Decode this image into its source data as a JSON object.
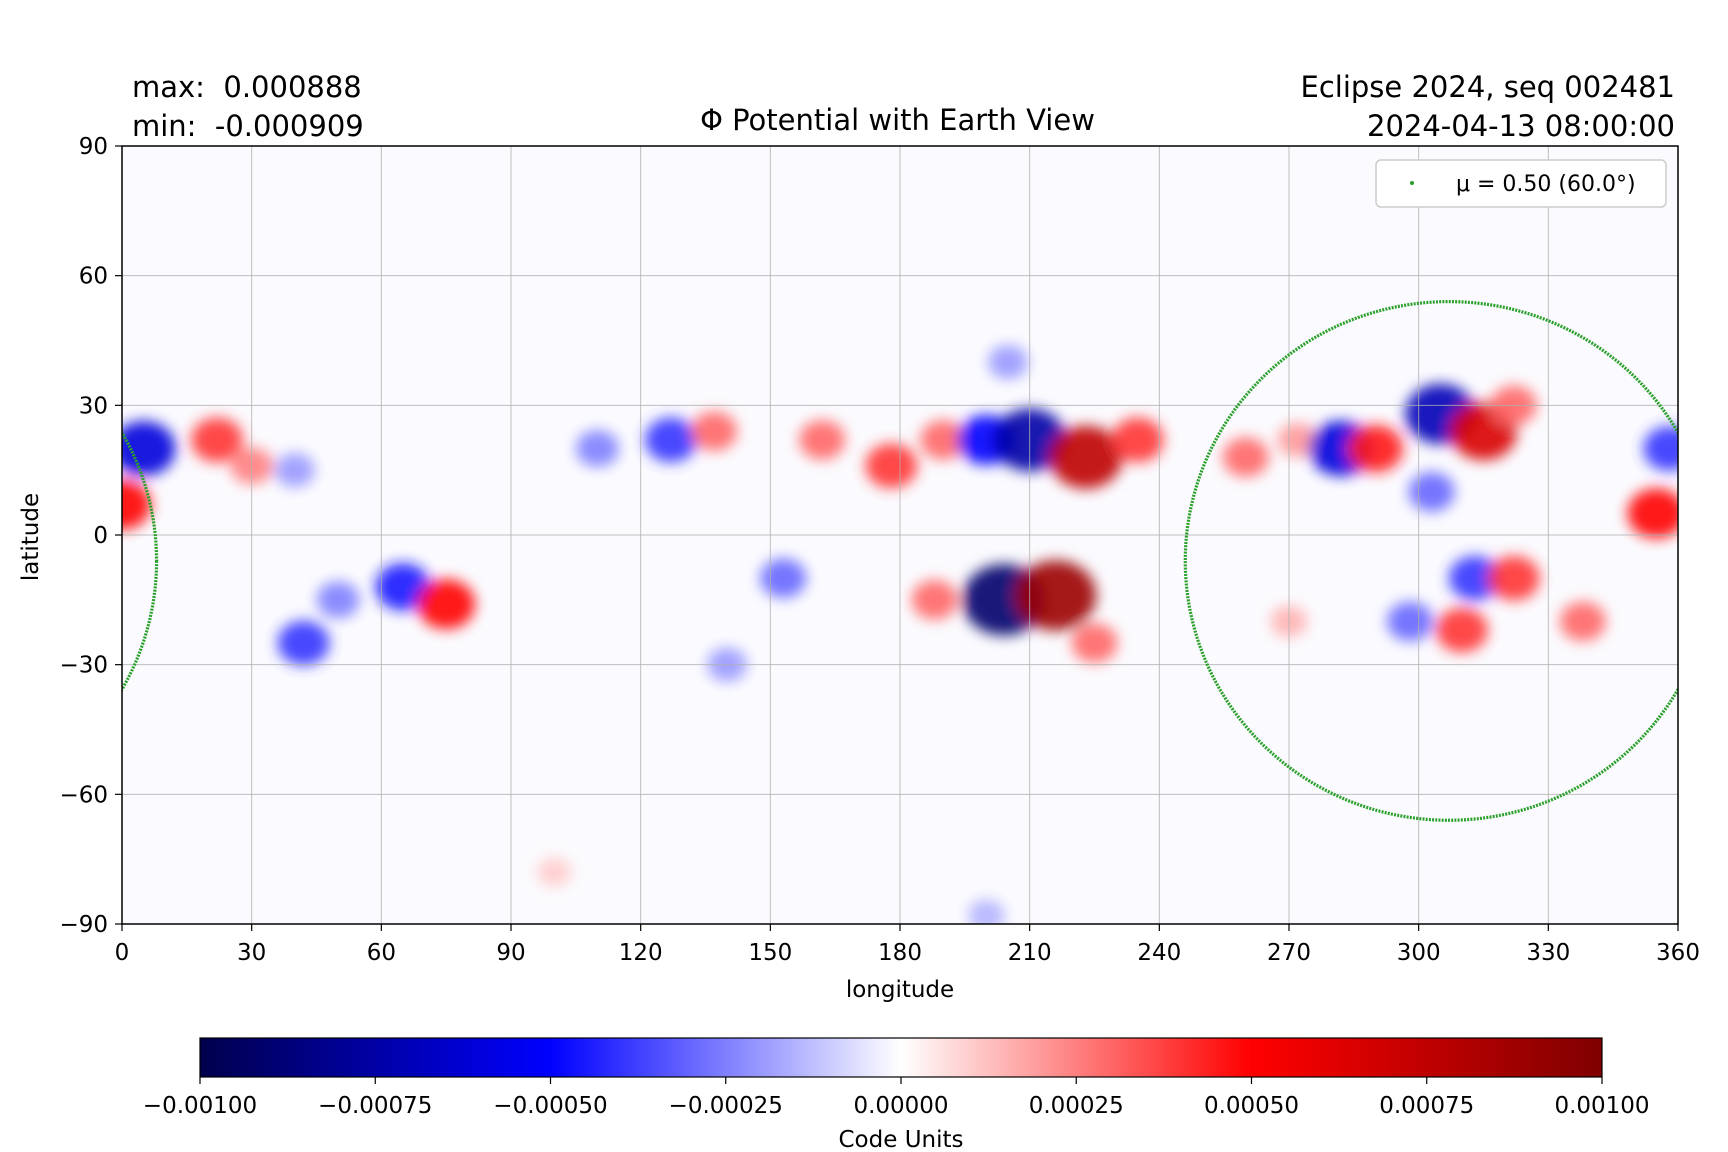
{
  "header": {
    "max_line": "max:  0.000888",
    "min_line": "min:  -0.000909",
    "run_line": "Eclipse 2024, seq 002481",
    "date_line": "2024-04-13 08:00:00"
  },
  "chart_data": {
    "type": "heatmap",
    "title": "Φ Potential with Earth View",
    "xlabel": "longitude",
    "ylabel": "latitude",
    "xlim": [
      0,
      360
    ],
    "ylim": [
      -90,
      90
    ],
    "xticks": [
      0,
      30,
      60,
      90,
      120,
      150,
      180,
      210,
      240,
      270,
      300,
      330,
      360
    ],
    "yticks": [
      90,
      60,
      30,
      0,
      -30,
      -60,
      -90
    ],
    "ytick_labels": [
      "90",
      "60",
      "30",
      "0",
      "−30",
      "−60",
      "−90"
    ],
    "grid": true,
    "colormap": "seismic",
    "colormap_stops": [
      "#00004c",
      "#0000ff",
      "#ffffff",
      "#ff0000",
      "#7f0000"
    ],
    "data_max": 0.000888,
    "data_min": -0.000909,
    "features": [
      {
        "lon": 5,
        "lat": 20,
        "value": -0.0006
      },
      {
        "lon": 0,
        "lat": 7,
        "value": 0.0005
      },
      {
        "lon": 22,
        "lat": 22,
        "value": 0.0004
      },
      {
        "lon": 30,
        "lat": 16,
        "value": 0.00025
      },
      {
        "lon": 40,
        "lat": 15,
        "value": -0.0002
      },
      {
        "lon": 50,
        "lat": -15,
        "value": -0.00025
      },
      {
        "lon": 42,
        "lat": -25,
        "value": -0.0004
      },
      {
        "lon": 65,
        "lat": -12,
        "value": -0.00045
      },
      {
        "lon": 75,
        "lat": -16,
        "value": 0.0005
      },
      {
        "lon": 110,
        "lat": 20,
        "value": -0.00025
      },
      {
        "lon": 127,
        "lat": 22,
        "value": -0.0004
      },
      {
        "lon": 137,
        "lat": 24,
        "value": 0.0003
      },
      {
        "lon": 153,
        "lat": -10,
        "value": -0.0003
      },
      {
        "lon": 140,
        "lat": -30,
        "value": -0.0002
      },
      {
        "lon": 162,
        "lat": 22,
        "value": 0.0003
      },
      {
        "lon": 178,
        "lat": 16,
        "value": 0.0004
      },
      {
        "lon": 190,
        "lat": 22,
        "value": 0.0003
      },
      {
        "lon": 200,
        "lat": 22,
        "value": -0.0005
      },
      {
        "lon": 210,
        "lat": 22,
        "value": -0.00075
      },
      {
        "lon": 223,
        "lat": 18,
        "value": 0.00075
      },
      {
        "lon": 235,
        "lat": 22,
        "value": 0.0004
      },
      {
        "lon": 188,
        "lat": -15,
        "value": 0.0003
      },
      {
        "lon": 204,
        "lat": -15,
        "value": -0.00091
      },
      {
        "lon": 216,
        "lat": -14,
        "value": 0.00089
      },
      {
        "lon": 225,
        "lat": -25,
        "value": 0.0003
      },
      {
        "lon": 205,
        "lat": 40,
        "value": -0.0002
      },
      {
        "lon": 260,
        "lat": 18,
        "value": 0.0003
      },
      {
        "lon": 272,
        "lat": 22,
        "value": 0.0002
      },
      {
        "lon": 282,
        "lat": 20,
        "value": -0.0006
      },
      {
        "lon": 290,
        "lat": 20,
        "value": 0.00045
      },
      {
        "lon": 305,
        "lat": 28,
        "value": -0.0007
      },
      {
        "lon": 315,
        "lat": 24,
        "value": 0.00065
      },
      {
        "lon": 322,
        "lat": 30,
        "value": 0.0003
      },
      {
        "lon": 303,
        "lat": 10,
        "value": -0.0003
      },
      {
        "lon": 313,
        "lat": -10,
        "value": -0.0004
      },
      {
        "lon": 298,
        "lat": -20,
        "value": -0.0003
      },
      {
        "lon": 310,
        "lat": -22,
        "value": 0.0004
      },
      {
        "lon": 322,
        "lat": -10,
        "value": 0.0004
      },
      {
        "lon": 338,
        "lat": -20,
        "value": 0.0003
      },
      {
        "lon": 355,
        "lat": 5,
        "value": 0.0005
      },
      {
        "lon": 358,
        "lat": 20,
        "value": -0.0004
      },
      {
        "lon": 270,
        "lat": -20,
        "value": 0.00015
      },
      {
        "lon": 100,
        "lat": -78,
        "value": 0.0001
      },
      {
        "lon": 200,
        "lat": -88,
        "value": -0.00015
      }
    ],
    "series": [
      {
        "name": "μ = 0.50 (60.0°)",
        "type": "ellipse",
        "color": "#2ca02c",
        "center_lon": 307,
        "center_lat": -6,
        "half_width_lon": 61,
        "half_height_lat": 60
      }
    ],
    "legend": {
      "placement": "top-right",
      "label": "μ = 0.50 (60.0°)"
    },
    "colorbar": {
      "label": "Code Units",
      "min": -0.001,
      "max": 0.001,
      "ticks": [
        -0.001,
        -0.00075,
        -0.0005,
        -0.00025,
        0,
        0.00025,
        0.0005,
        0.00075,
        0.001
      ],
      "tick_labels": [
        "−0.00100",
        "−0.00075",
        "−0.00050",
        "−0.00025",
        "0.00000",
        "0.00025",
        "0.00050",
        "0.00075",
        "0.00100"
      ]
    }
  }
}
